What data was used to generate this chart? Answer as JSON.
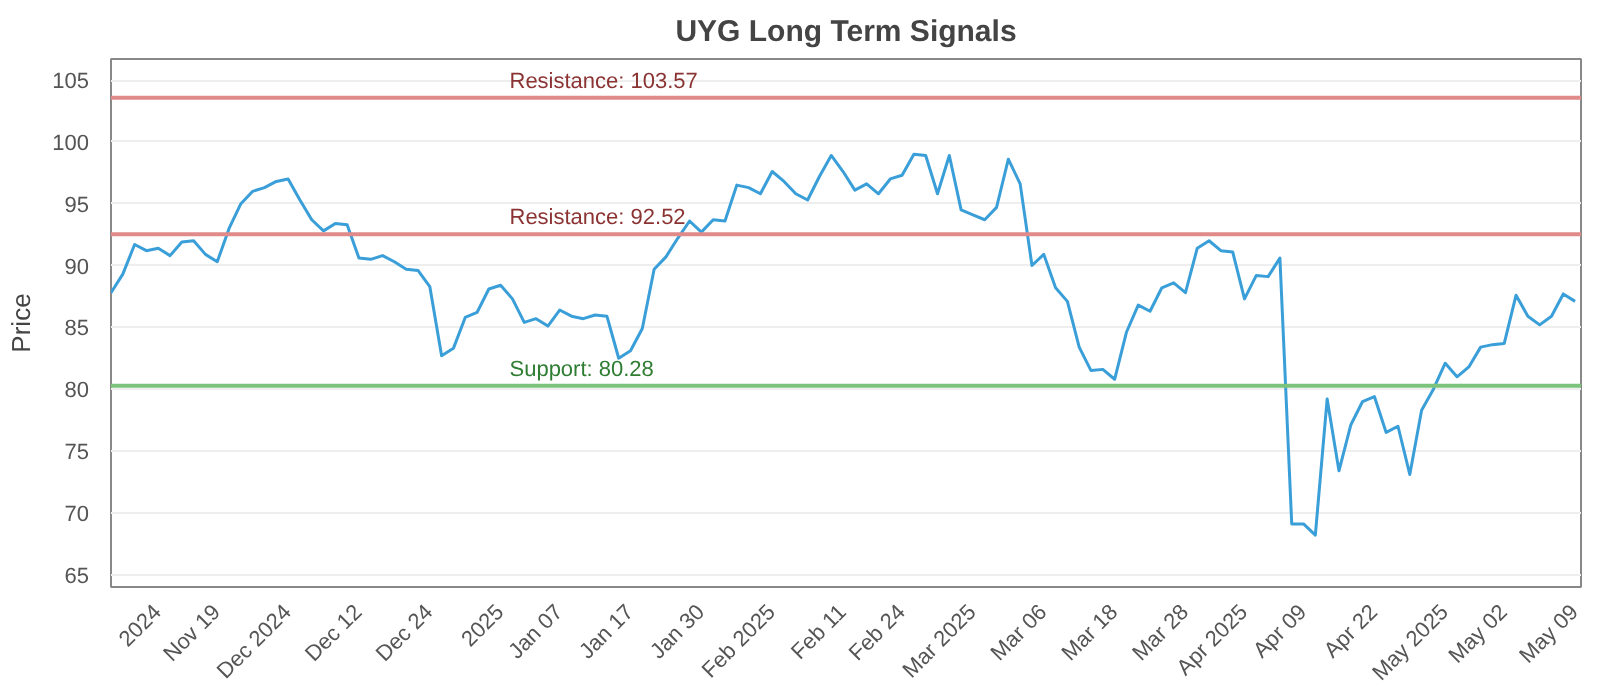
{
  "chart_data": {
    "type": "line",
    "title": "UYG Long Term Signals",
    "ylabel": "Price",
    "categories": [
      null,
      null,
      null,
      null,
      "2024",
      null,
      null,
      null,
      null,
      "Nov 19",
      null,
      null,
      null,
      null,
      null,
      "Dec 2024",
      null,
      null,
      null,
      null,
      null,
      "Dec 12",
      null,
      null,
      null,
      null,
      null,
      "Dec 24",
      null,
      null,
      null,
      null,
      null,
      "2025",
      null,
      null,
      null,
      null,
      "Jan 07",
      null,
      null,
      null,
      null,
      null,
      "Jan 17",
      null,
      null,
      null,
      null,
      null,
      "Jan 30",
      null,
      null,
      null,
      null,
      null,
      "Feb 2025",
      null,
      null,
      null,
      null,
      null,
      "Feb 11",
      null,
      null,
      null,
      null,
      "Feb 24",
      null,
      null,
      null,
      null,
      null,
      "Mar 2025",
      null,
      null,
      null,
      null,
      null,
      "Mar 06",
      null,
      null,
      null,
      null,
      null,
      "Mar 18",
      null,
      null,
      null,
      null,
      null,
      "Mar 28",
      null,
      null,
      null,
      null,
      "Apr 2025",
      null,
      null,
      null,
      null,
      "Apr 09",
      null,
      null,
      null,
      null,
      null,
      "Apr 22",
      null,
      null,
      null,
      null,
      null,
      "May 2025",
      null,
      null,
      null,
      null,
      "May 02",
      null,
      null,
      null,
      null,
      null,
      "May 09"
    ],
    "series": [
      {
        "color": "#3a9fd8",
        "values": [
          87.8,
          89.3,
          91.7,
          91.2,
          91.4,
          90.8,
          91.9,
          92.0,
          90.9,
          90.3,
          93.0,
          95.0,
          96.0,
          96.3,
          96.8,
          97.0,
          95.3,
          93.7,
          92.8,
          93.4,
          93.3,
          90.6,
          90.5,
          90.8,
          90.3,
          89.7,
          89.6,
          88.3,
          82.7,
          83.3,
          85.8,
          86.2,
          88.1,
          88.4,
          87.3,
          85.4,
          85.7,
          85.1,
          86.4,
          85.9,
          85.7,
          86.0,
          85.9,
          82.5,
          83.1,
          84.9,
          89.7,
          90.7,
          92.2,
          93.6,
          92.7,
          93.7,
          93.6,
          96.5,
          96.3,
          95.8,
          97.6,
          96.8,
          95.8,
          95.3,
          97.2,
          98.9,
          97.6,
          96.1,
          96.6,
          95.8,
          97.0,
          97.3,
          99.0,
          98.9,
          95.8,
          98.9,
          94.5,
          94.1,
          93.7,
          94.7,
          98.6,
          96.6,
          90.0,
          90.9,
          88.2,
          87.1,
          83.4,
          81.5,
          81.6,
          80.8,
          84.6,
          86.8,
          86.3,
          88.2,
          88.6,
          87.8,
          91.4,
          92.0,
          91.2,
          91.1,
          87.3,
          89.2,
          89.1,
          90.6,
          69.1,
          69.1,
          68.2,
          79.2,
          73.4,
          77.1,
          79.0,
          79.4,
          76.5,
          77.0,
          73.1,
          78.3,
          80.0,
          82.1,
          81.0,
          81.8,
          83.4,
          83.6,
          83.7,
          87.6,
          85.9,
          85.2,
          85.9,
          87.7,
          87.1
        ]
      }
    ],
    "ylim": [
      64,
      106.7
    ],
    "yticks": [
      65,
      70,
      75,
      80,
      85,
      90,
      95,
      100,
      105
    ],
    "grid": "y",
    "ref_lines": [
      {
        "axis": "y",
        "value": 103.57,
        "label": "Resistance: 103.57",
        "color": "#e08a8a"
      },
      {
        "axis": "y",
        "value": 92.52,
        "label": "Resistance: 92.52",
        "color": "#e08a8a"
      },
      {
        "axis": "y",
        "value": 80.28,
        "label": "Support: 80.28",
        "color": "#7cc47c"
      }
    ]
  }
}
